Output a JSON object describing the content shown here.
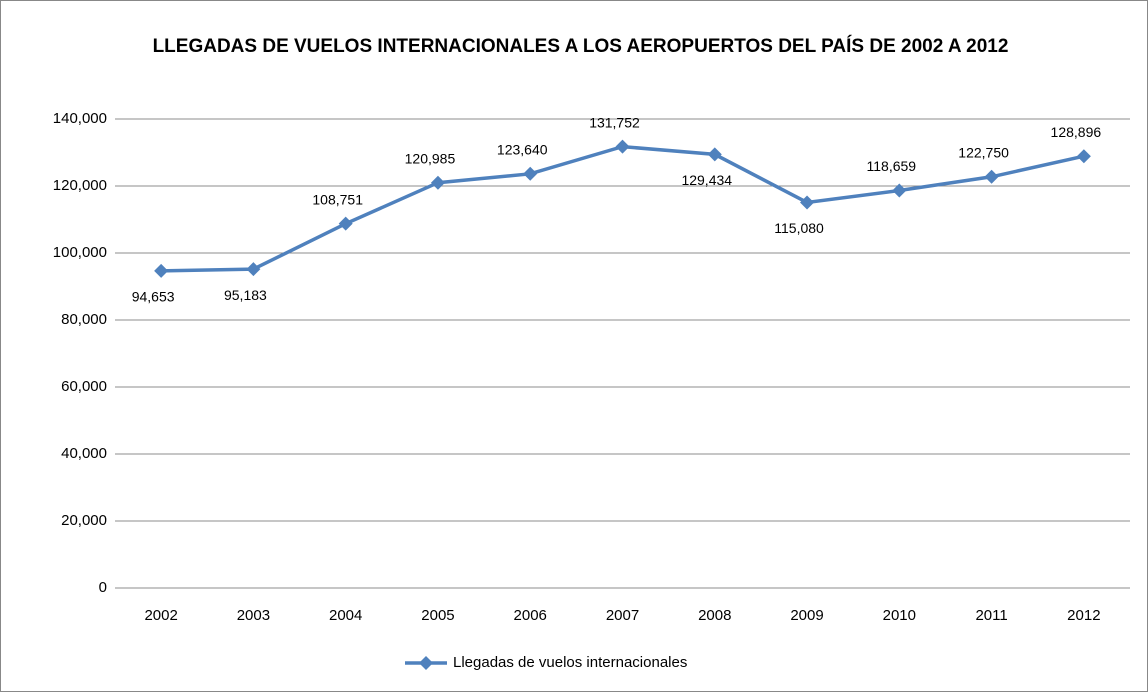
{
  "chart_data": {
    "type": "line",
    "title": "LLEGADAS DE VUELOS INTERNACIONALES A LOS AEROPUERTOS DEL PAÍS DE 2002 A 2012",
    "categories": [
      "2002",
      "2003",
      "2004",
      "2005",
      "2006",
      "2007",
      "2008",
      "2009",
      "2010",
      "2011",
      "2012"
    ],
    "series": [
      {
        "name": "Llegadas de vuelos internacionales",
        "color": "#4f81bd",
        "values": [
          94653,
          95183,
          108751,
          120985,
          123640,
          131752,
          129434,
          115080,
          118659,
          122750,
          128896
        ],
        "value_labels": [
          "94,653",
          "95,183",
          "108,751",
          "120,985",
          "123,640",
          "131,752",
          "129,434",
          "115,080",
          "118,659",
          "122,750",
          "128,896"
        ]
      }
    ],
    "ylim": [
      0,
      140000
    ],
    "yticks": [
      0,
      {
        "value": 20000,
        "label": "20,000"
      },
      {
        "value": 40000,
        "label": "40,000"
      },
      {
        "value": 60000,
        "label": "60,000"
      },
      {
        "value": 80000,
        "label": "80,000"
      },
      {
        "value": 100000,
        "label": "100,000"
      },
      {
        "value": 120000,
        "label": "120,000"
      },
      {
        "value": 140000,
        "label": "140,000"
      }
    ],
    "grid": true,
    "legend": "bottom"
  }
}
